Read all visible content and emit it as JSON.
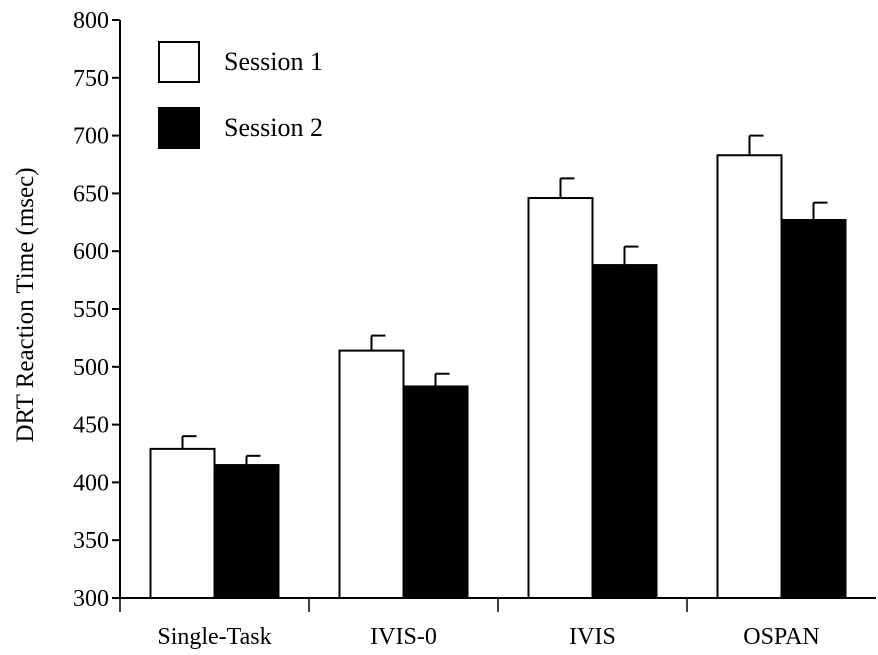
{
  "chart_data": {
    "type": "bar",
    "categories": [
      "Single-Task",
      "IVIS-0",
      "IVIS",
      "OSPAN"
    ],
    "series": [
      {
        "name": "Session 1",
        "values": [
          429,
          514,
          646,
          683
        ],
        "errors": [
          11,
          13,
          17,
          17
        ],
        "color": "#ffffff"
      },
      {
        "name": "Session 2",
        "values": [
          415,
          483,
          588,
          627
        ],
        "errors": [
          8,
          11,
          16,
          15
        ],
        "color": "#000000"
      }
    ],
    "title": "",
    "xlabel": "",
    "ylabel": "DRT Reaction Time (msec)",
    "ylim": [
      300,
      800
    ],
    "yticks": [
      300,
      350,
      400,
      450,
      500,
      550,
      600,
      650,
      700,
      750,
      800
    ],
    "grid": false,
    "legend_position": "top-left"
  }
}
